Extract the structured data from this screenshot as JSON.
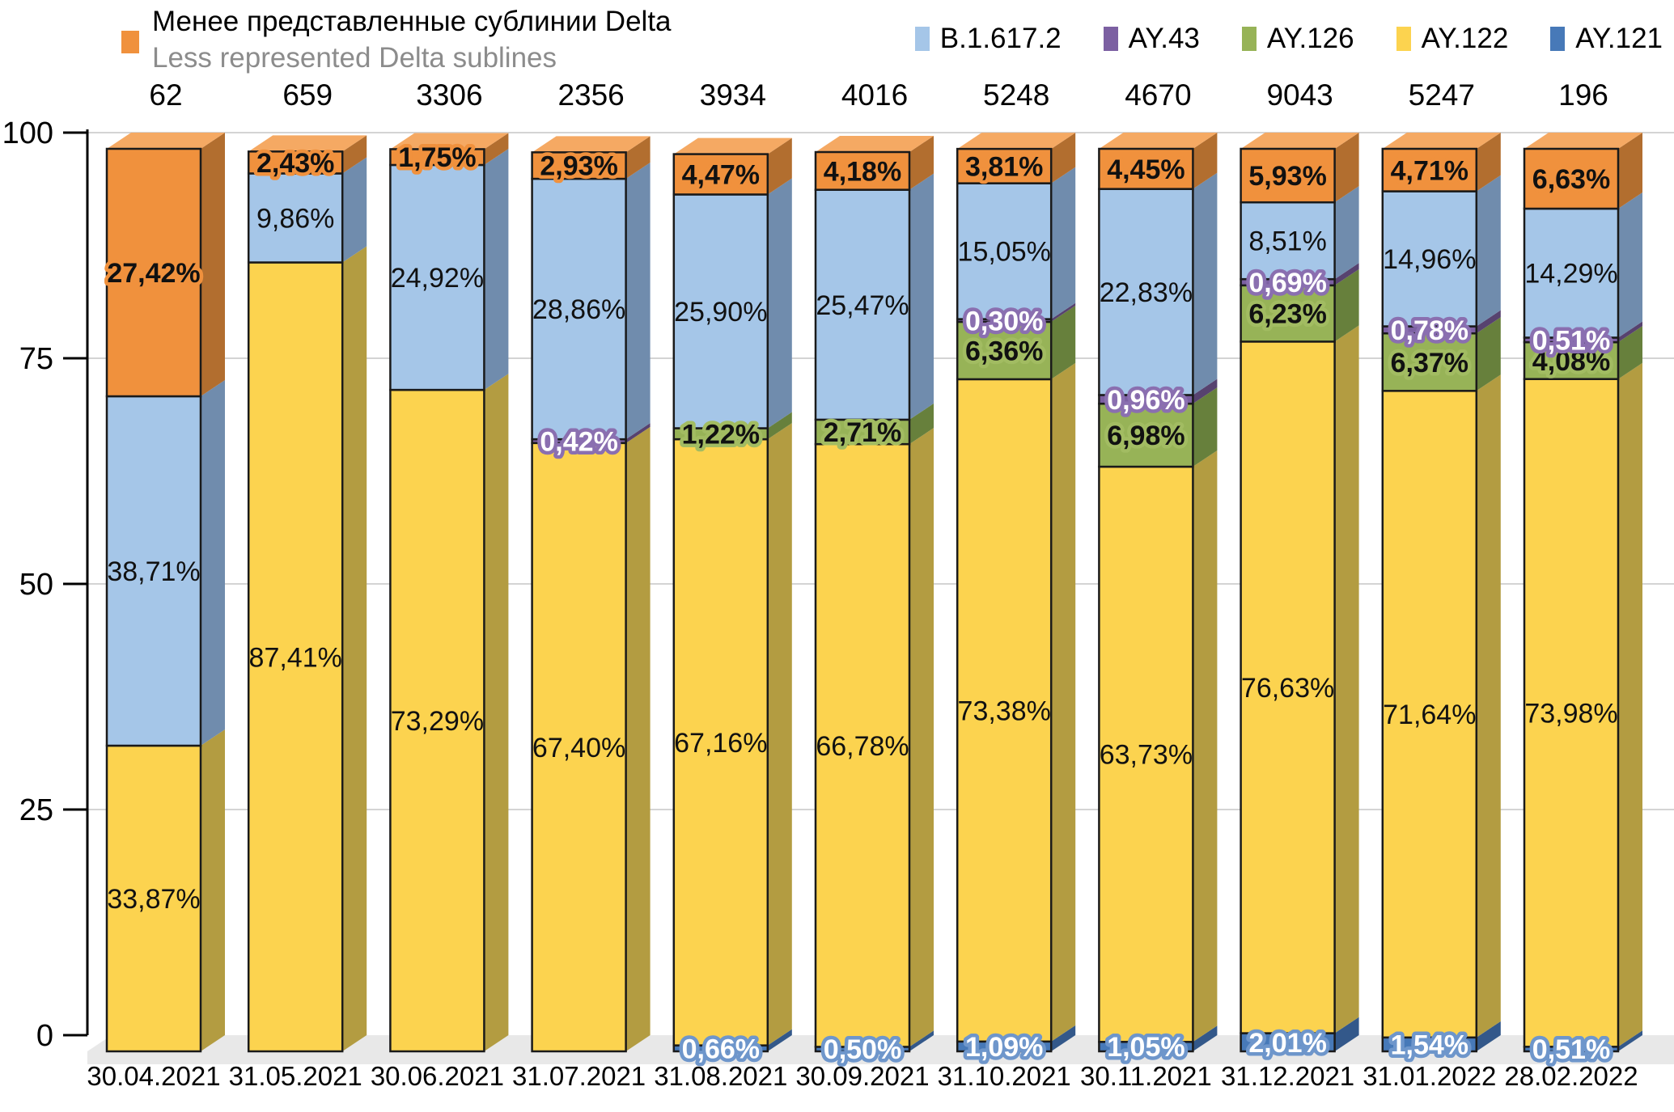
{
  "legend_left": {
    "swatch_color": "#F0913D",
    "title_ru": "Менее представленные сублинии Delta",
    "title_en": "Less represented Delta sublines"
  },
  "legend_series": [
    {
      "label": "B.1.617.2",
      "color": "#A5C6E8"
    },
    {
      "label": "AY.43",
      "color": "#7C60A2"
    },
    {
      "label": "AY.126",
      "color": "#97B357"
    },
    {
      "label": "AY.122",
      "color": "#FCD34F"
    },
    {
      "label": "AY.121",
      "color": "#4779B8"
    }
  ],
  "chart_data": {
    "type": "bar",
    "stacked": true,
    "effect": "3d",
    "ylim": [
      0,
      100
    ],
    "yticks": [
      0,
      25,
      50,
      75,
      100
    ],
    "grid": true,
    "value_format": "comma-decimal-percent",
    "categories": [
      "30.04.2021",
      "31.05.2021",
      "30.06.2021",
      "31.07.2021",
      "31.08.2021",
      "30.09.2021",
      "31.10.2021",
      "30.11.2021",
      "31.12.2021",
      "31.01.2022",
      "28.02.2022"
    ],
    "counts": [
      62,
      659,
      3306,
      2356,
      3934,
      4016,
      5248,
      4670,
      9043,
      5247,
      196
    ],
    "series": [
      {
        "name": "AY.121",
        "color": "#4779B8",
        "side_color": "#33588A",
        "label_fill": "#ffffff",
        "label_halo": "#6E96CB",
        "values": [
          0,
          0,
          0,
          0,
          0.66,
          0.5,
          1.09,
          1.05,
          2.01,
          1.54,
          0.51
        ]
      },
      {
        "name": "AY.122",
        "color": "#FCD34F",
        "side_color": "#B39C41",
        "label_fill": "#111111",
        "label_halo": null,
        "values": [
          33.87,
          87.41,
          73.29,
          67.4,
          67.16,
          66.78,
          73.38,
          63.73,
          76.63,
          71.64,
          73.98
        ]
      },
      {
        "name": "AY.126",
        "color": "#97B357",
        "side_color": "#67803C",
        "label_fill": "#111111",
        "label_halo": "#A2BC62",
        "values": [
          0,
          0,
          0,
          0,
          1.22,
          2.71,
          6.36,
          6.98,
          6.23,
          6.37,
          4.08
        ]
      },
      {
        "name": "AY.43",
        "color": "#7C60A2",
        "side_color": "#57426F",
        "label_fill": "#ffffff",
        "label_halo": "#8A6FB0",
        "values": [
          0,
          0,
          0,
          0.42,
          0,
          0,
          0.3,
          0.96,
          0.69,
          0.78,
          0.51
        ]
      },
      {
        "name": "B.1.617.2",
        "color": "#A5C6E8",
        "side_color": "#708CAD",
        "label_fill": "#111111",
        "label_halo": null,
        "values": [
          38.71,
          9.86,
          24.92,
          28.86,
          25.9,
          25.47,
          15.05,
          22.83,
          8.51,
          14.96,
          14.29
        ]
      },
      {
        "name": "Менее представленные сублинии Delta",
        "color": "#F0913D",
        "side_color": "#B26E2F",
        "top_color": "#F5A963",
        "label_fill": "#111111",
        "label_halo": "#F0913D",
        "values": [
          27.42,
          2.43,
          1.75,
          2.93,
          4.47,
          4.18,
          3.81,
          4.45,
          5.93,
          4.71,
          6.63
        ]
      }
    ],
    "colors": {
      "gridline": "#D4D4D4",
      "axis": "#000000",
      "floor": "#E8E8E8",
      "segment_stroke": "#1A1A1A"
    }
  }
}
